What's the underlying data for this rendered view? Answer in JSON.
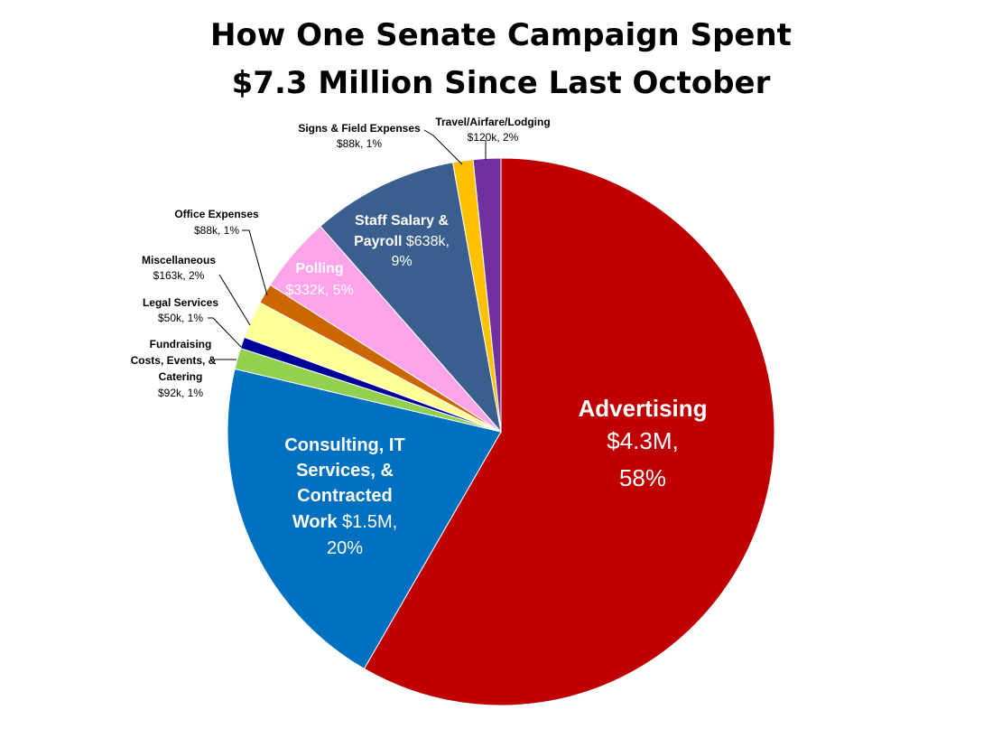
{
  "chart_data": {
    "type": "pie",
    "title_line1": "How One Senate Campaign Spent",
    "title_line2": "$7.3 Million Since Last October",
    "slices": [
      {
        "name": "Advertising",
        "detail": "$4.3M, 58%",
        "value": 4300,
        "percent": 58,
        "color": "#C00000"
      },
      {
        "name": "Consulting, IT Services, & Contracted Work",
        "detail": "$1.5M, 20%",
        "value": 1500,
        "percent": 20,
        "color": "#0070C0"
      },
      {
        "name": "Fundraising Costs, Events, & Catering",
        "detail": "$92k, 1%",
        "value": 92,
        "percent": 1,
        "color": "#92D050"
      },
      {
        "name": "Legal Services",
        "detail": "$50k, 1%",
        "value": 50,
        "percent": 1,
        "color": "#000099"
      },
      {
        "name": "Miscellaneous",
        "detail": "$163k, 2%",
        "value": 163,
        "percent": 2,
        "color": "#FFFF99"
      },
      {
        "name": "Office Expenses",
        "detail": "$88k, 1%",
        "value": 88,
        "percent": 1,
        "color": "#CC6600"
      },
      {
        "name": "Polling",
        "detail": "$332k, 5%",
        "value": 332,
        "percent": 5,
        "color": "#FFA3EB"
      },
      {
        "name": "Staff Salary & Payroll",
        "detail": "$638k, 9%",
        "value": 638,
        "percent": 9,
        "color": "#3A5F8F"
      },
      {
        "name": "Signs & Field Expenses",
        "detail": "$88k, 1%",
        "value": 88,
        "percent": 1,
        "color": "#FFC000"
      },
      {
        "name": "Travel/Airfare/Lodging",
        "detail": "$120k, 2%",
        "value": 120,
        "percent": 2,
        "color": "#7030A0"
      }
    ]
  },
  "labels": {
    "advertising": {
      "name": "Advertising",
      "value": "$4.3M,",
      "percent": "58%"
    },
    "consulting": {
      "l1": "Consulting, IT",
      "l2": "Services, &",
      "l3": "Contracted",
      "l4_bold": "Work",
      "l4_rest": " $1.5M,",
      "l5": "20%"
    },
    "staff": {
      "l1": "Staff Salary &",
      "l2_bold": "Payroll",
      "l2_rest": " $638k,",
      "l3": "9%"
    },
    "polling": {
      "name": "Polling",
      "detail": "$332k, 5%"
    },
    "signs": {
      "name": "Signs & Field Expenses",
      "detail": "$88k, 1%"
    },
    "travel": {
      "name": "Travel/Airfare/Lodging",
      "detail": "$120k, 2%"
    },
    "office": {
      "name": "Office Expenses",
      "detail": "$88k, 1%"
    },
    "misc": {
      "name": "Miscellaneous",
      "detail": "$163k, 2%"
    },
    "legal": {
      "name": "Legal Services",
      "detail": "$50k, 1%"
    },
    "fundraising": {
      "l1": "Fundraising",
      "l2": "Costs, Events, &",
      "l3": "Catering",
      "detail": "$92k, 1%"
    }
  }
}
